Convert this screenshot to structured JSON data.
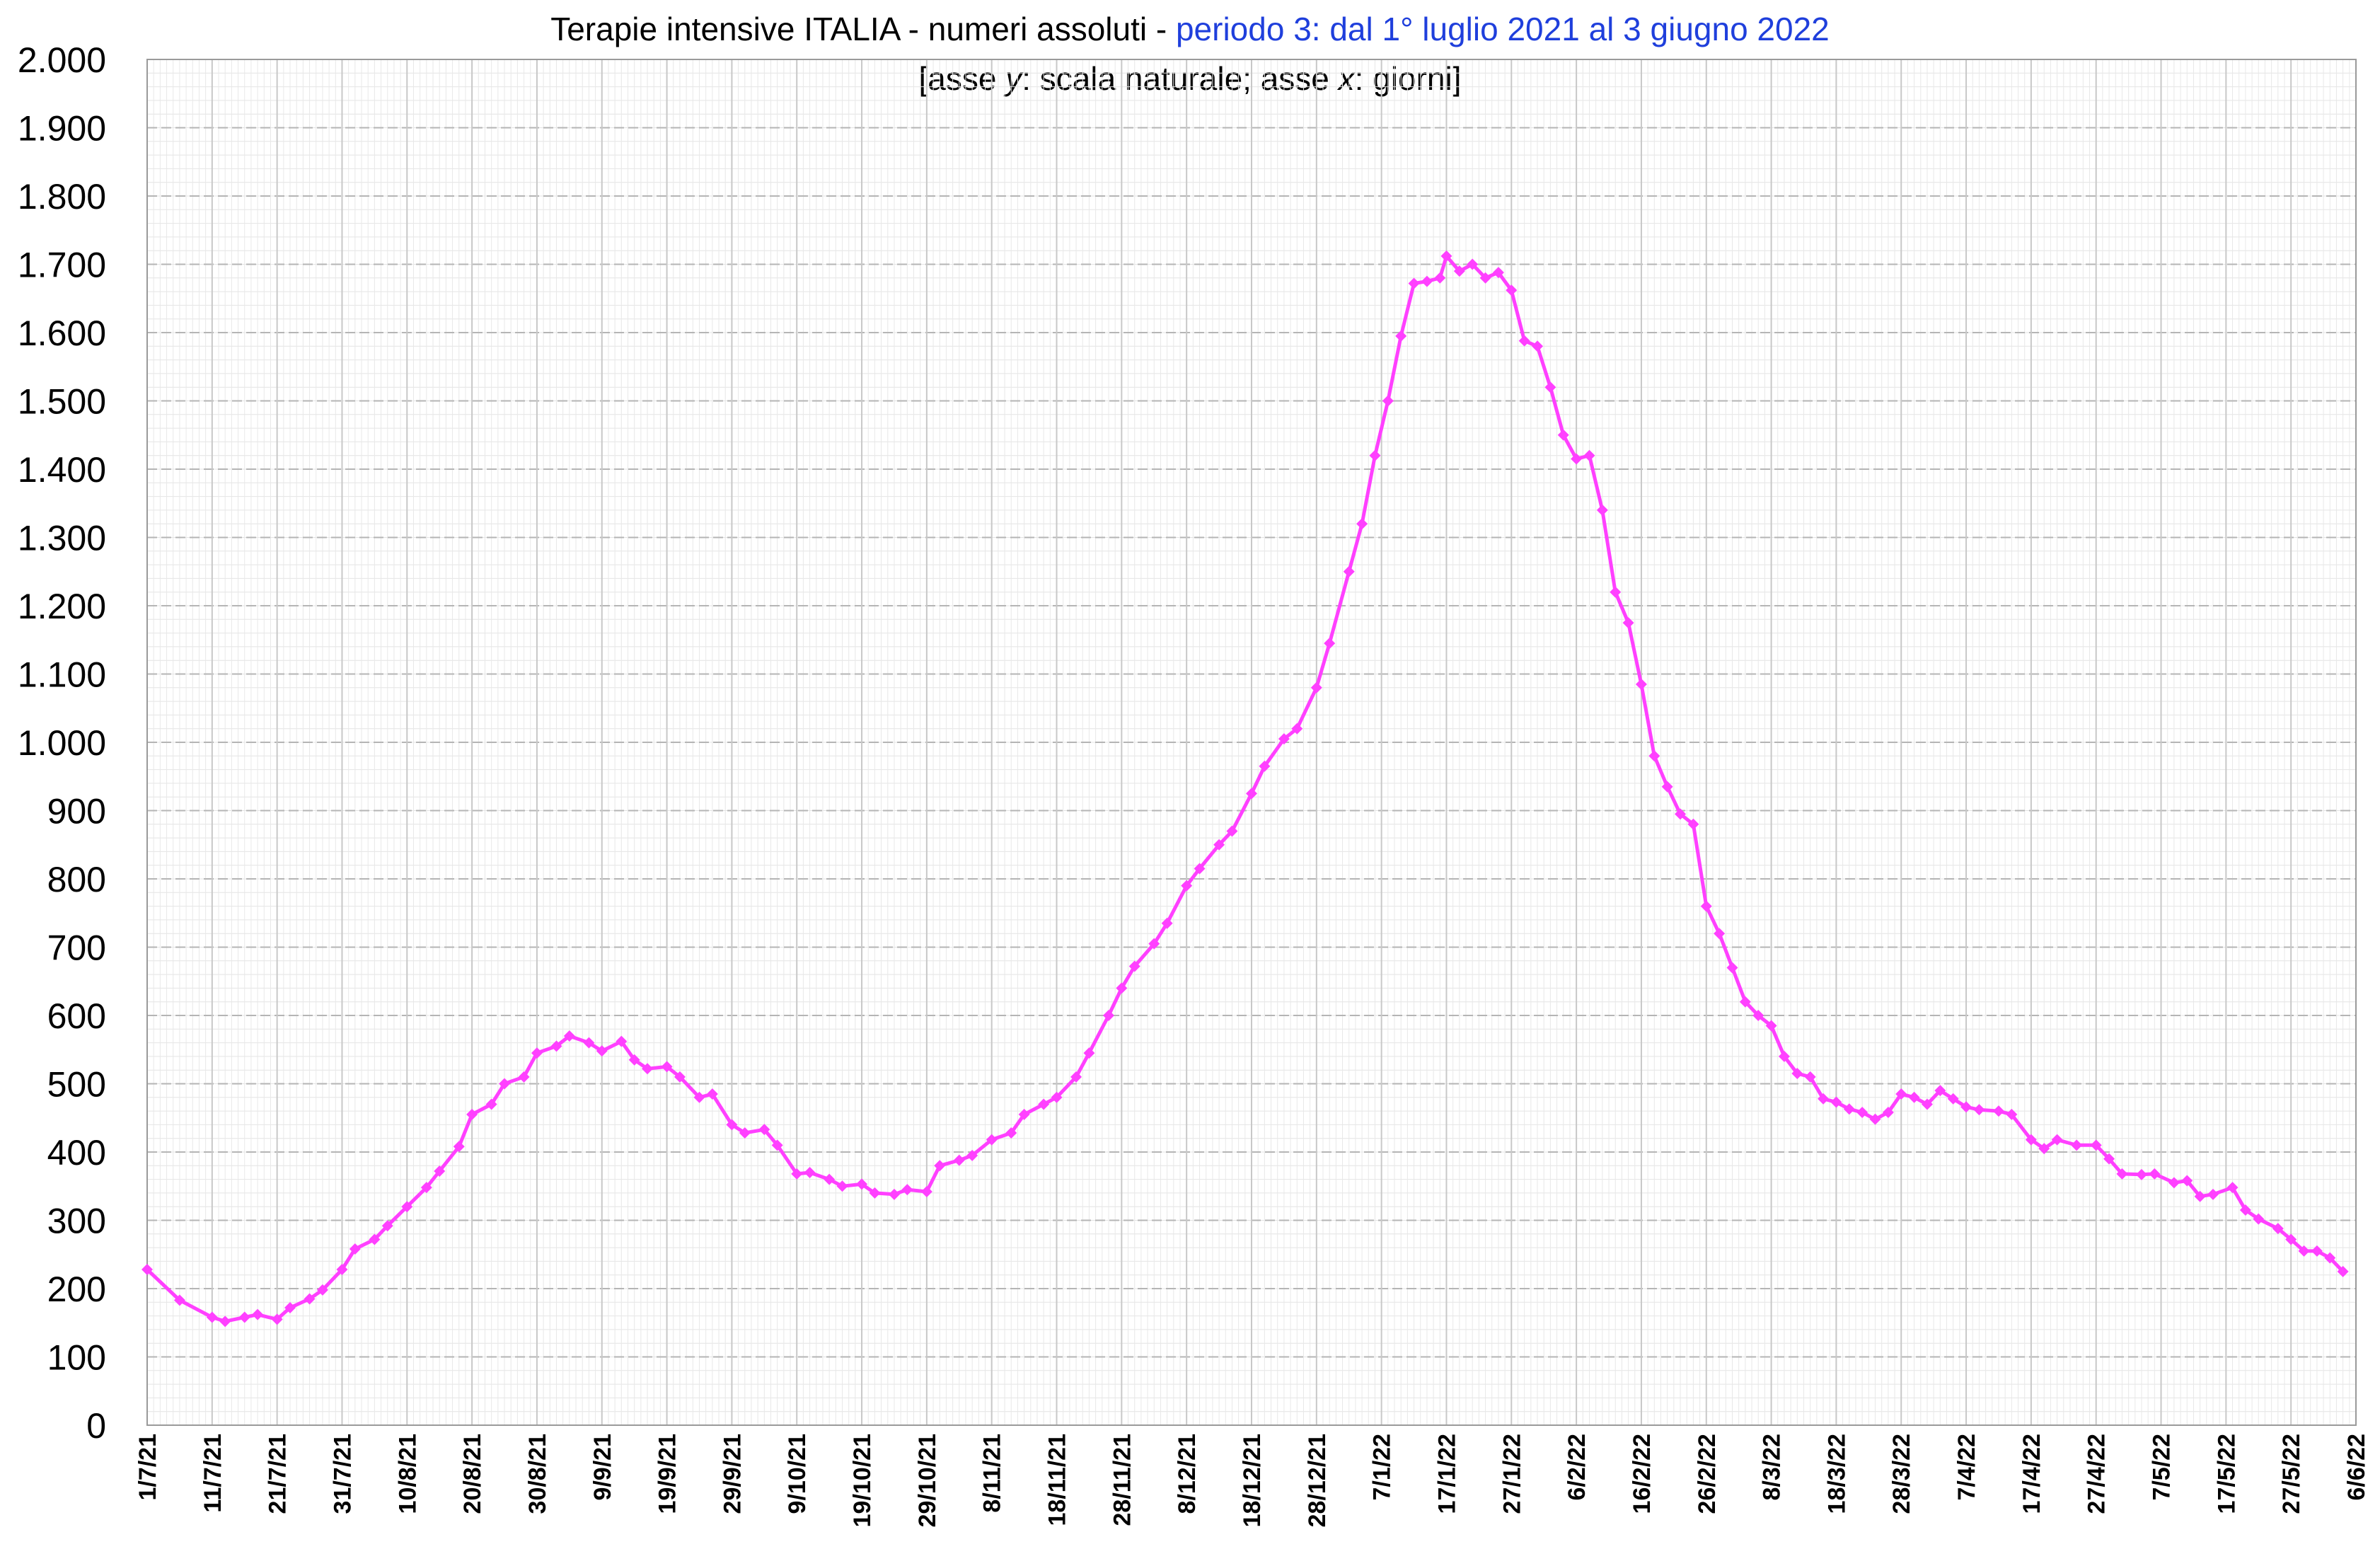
{
  "chart_data": {
    "type": "line",
    "title": "Terapie intensive ITALIA - numeri assoluti - ",
    "title_highlight": "periodo 3: dal 1° luglio 2021 al 3 giugno 2022",
    "subtitle_prefix": "[asse ",
    "subtitle_y": "y",
    "subtitle_mid": ": scala naturale;  asse ",
    "subtitle_x": "x",
    "subtitle_suffix": ": giorni]",
    "xlabel": "",
    "ylabel": "",
    "ylim": [
      0,
      2000
    ],
    "y_ticks": [
      0,
      100,
      200,
      300,
      400,
      500,
      600,
      700,
      800,
      900,
      1000,
      1100,
      1200,
      1300,
      1400,
      1500,
      1600,
      1700,
      1800,
      1900,
      2000
    ],
    "y_tick_labels": [
      "0",
      "100",
      "200",
      "300",
      "400",
      "500",
      "600",
      "700",
      "800",
      "900",
      "1.000",
      "1.100",
      "1.200",
      "1.300",
      "1.400",
      "1.500",
      "1.600",
      "1.700",
      "1.800",
      "1.900",
      "2.000"
    ],
    "x_start": "2021-07-01",
    "x_end": "2022-06-06",
    "x_tick_dates": [
      "2021-07-01",
      "2021-07-11",
      "2021-07-21",
      "2021-07-31",
      "2021-08-10",
      "2021-08-20",
      "2021-08-30",
      "2021-09-09",
      "2021-09-19",
      "2021-09-29",
      "2021-10-09",
      "2021-10-19",
      "2021-10-29",
      "2021-11-08",
      "2021-11-18",
      "2021-11-28",
      "2021-12-08",
      "2021-12-18",
      "2021-12-28",
      "2022-01-07",
      "2022-01-17",
      "2022-01-27",
      "2022-02-06",
      "2022-02-16",
      "2022-02-26",
      "2022-03-08",
      "2022-03-18",
      "2022-03-28",
      "2022-04-07",
      "2022-04-17",
      "2022-04-27",
      "2022-05-07",
      "2022-05-17",
      "2022-05-27",
      "2022-06-06"
    ],
    "x_tick_labels": [
      "1/7/21",
      "11/7/21",
      "21/7/21",
      "31/7/21",
      "10/8/21",
      "20/8/21",
      "30/8/21",
      "9/9/21",
      "19/9/21",
      "29/9/21",
      "9/10/21",
      "19/10/21",
      "29/10/21",
      "8/11/21",
      "18/11/21",
      "28/11/21",
      "8/12/21",
      "18/12/21",
      "28/12/21",
      "7/1/22",
      "17/1/22",
      "27/1/22",
      "6/2/22",
      "16/2/22",
      "26/2/22",
      "8/3/22",
      "18/3/22",
      "28/3/22",
      "7/4/22",
      "17/4/22",
      "27/4/22",
      "7/5/22",
      "17/5/22",
      "27/5/22",
      "6/6/22"
    ],
    "grid": true,
    "legend": "none",
    "series": [
      {
        "color": "#ff40ff",
        "points": [
          [
            "2021-07-01",
            228
          ],
          [
            "2021-07-06",
            183
          ],
          [
            "2021-07-11",
            158
          ],
          [
            "2021-07-13",
            152
          ],
          [
            "2021-07-16",
            158
          ],
          [
            "2021-07-18",
            162
          ],
          [
            "2021-07-21",
            155
          ],
          [
            "2021-07-23",
            172
          ],
          [
            "2021-07-26",
            185
          ],
          [
            "2021-07-28",
            198
          ],
          [
            "2021-07-31",
            228
          ],
          [
            "2021-08-02",
            258
          ],
          [
            "2021-08-05",
            272
          ],
          [
            "2021-08-07",
            292
          ],
          [
            "2021-08-10",
            320
          ],
          [
            "2021-08-13",
            348
          ],
          [
            "2021-08-15",
            372
          ],
          [
            "2021-08-18",
            408
          ],
          [
            "2021-08-20",
            455
          ],
          [
            "2021-08-23",
            470
          ],
          [
            "2021-08-25",
            500
          ],
          [
            "2021-08-28",
            510
          ],
          [
            "2021-08-30",
            545
          ],
          [
            "2021-09-02",
            555
          ],
          [
            "2021-09-04",
            570
          ],
          [
            "2021-09-07",
            560
          ],
          [
            "2021-09-09",
            548
          ],
          [
            "2021-09-12",
            562
          ],
          [
            "2021-09-14",
            535
          ],
          [
            "2021-09-16",
            522
          ],
          [
            "2021-09-19",
            525
          ],
          [
            "2021-09-21",
            510
          ],
          [
            "2021-09-24",
            480
          ],
          [
            "2021-09-26",
            485
          ],
          [
            "2021-09-29",
            440
          ],
          [
            "2021-10-01",
            428
          ],
          [
            "2021-10-04",
            433
          ],
          [
            "2021-10-06",
            410
          ],
          [
            "2021-10-09",
            368
          ],
          [
            "2021-10-11",
            370
          ],
          [
            "2021-10-14",
            360
          ],
          [
            "2021-10-16",
            350
          ],
          [
            "2021-10-19",
            353
          ],
          [
            "2021-10-21",
            340
          ],
          [
            "2021-10-24",
            338
          ],
          [
            "2021-10-26",
            345
          ],
          [
            "2021-10-29",
            342
          ],
          [
            "2021-10-31",
            380
          ],
          [
            "2021-11-03",
            388
          ],
          [
            "2021-11-05",
            395
          ],
          [
            "2021-11-08",
            418
          ],
          [
            "2021-11-11",
            428
          ],
          [
            "2021-11-13",
            455
          ],
          [
            "2021-11-16",
            470
          ],
          [
            "2021-11-18",
            480
          ],
          [
            "2021-11-21",
            510
          ],
          [
            "2021-11-23",
            545
          ],
          [
            "2021-11-26",
            600
          ],
          [
            "2021-11-28",
            640
          ],
          [
            "2021-11-30",
            672
          ],
          [
            "2021-12-03",
            705
          ],
          [
            "2021-12-05",
            735
          ],
          [
            "2021-12-08",
            790
          ],
          [
            "2021-12-10",
            815
          ],
          [
            "2021-12-13",
            850
          ],
          [
            "2021-12-15",
            870
          ],
          [
            "2021-12-18",
            925
          ],
          [
            "2021-12-20",
            965
          ],
          [
            "2021-12-23",
            1005
          ],
          [
            "2021-12-25",
            1020
          ],
          [
            "2021-12-28",
            1080
          ],
          [
            "2021-12-30",
            1145
          ],
          [
            "2022-01-02",
            1250
          ],
          [
            "2022-01-04",
            1320
          ],
          [
            "2022-01-06",
            1420
          ],
          [
            "2022-01-08",
            1500
          ],
          [
            "2022-01-10",
            1595
          ],
          [
            "2022-01-12",
            1672
          ],
          [
            "2022-01-14",
            1675
          ],
          [
            "2022-01-16",
            1680
          ],
          [
            "2022-01-17",
            1712
          ],
          [
            "2022-01-19",
            1690
          ],
          [
            "2022-01-21",
            1700
          ],
          [
            "2022-01-23",
            1680
          ],
          [
            "2022-01-25",
            1688
          ],
          [
            "2022-01-27",
            1662
          ],
          [
            "2022-01-29",
            1588
          ],
          [
            "2022-01-31",
            1580
          ],
          [
            "2022-02-02",
            1520
          ],
          [
            "2022-02-04",
            1450
          ],
          [
            "2022-02-06",
            1415
          ],
          [
            "2022-02-08",
            1420
          ],
          [
            "2022-02-10",
            1340
          ],
          [
            "2022-02-12",
            1220
          ],
          [
            "2022-02-14",
            1175
          ],
          [
            "2022-02-16",
            1085
          ],
          [
            "2022-02-18",
            980
          ],
          [
            "2022-02-20",
            935
          ],
          [
            "2022-02-22",
            895
          ],
          [
            "2022-02-24",
            880
          ],
          [
            "2022-02-26",
            760
          ],
          [
            "2022-02-28",
            720
          ],
          [
            "2022-03-02",
            670
          ],
          [
            "2022-03-04",
            620
          ],
          [
            "2022-03-06",
            600
          ],
          [
            "2022-03-08",
            585
          ],
          [
            "2022-03-10",
            540
          ],
          [
            "2022-03-12",
            515
          ],
          [
            "2022-03-14",
            510
          ],
          [
            "2022-03-16",
            478
          ],
          [
            "2022-03-18",
            473
          ],
          [
            "2022-03-20",
            463
          ],
          [
            "2022-03-22",
            458
          ],
          [
            "2022-03-24",
            448
          ],
          [
            "2022-03-26",
            458
          ],
          [
            "2022-03-28",
            485
          ],
          [
            "2022-03-30",
            480
          ],
          [
            "2022-04-01",
            470
          ],
          [
            "2022-04-03",
            490
          ],
          [
            "2022-04-05",
            478
          ],
          [
            "2022-04-07",
            466
          ],
          [
            "2022-04-09",
            462
          ],
          [
            "2022-04-12",
            460
          ],
          [
            "2022-04-14",
            455
          ],
          [
            "2022-04-17",
            418
          ],
          [
            "2022-04-19",
            405
          ],
          [
            "2022-04-21",
            418
          ],
          [
            "2022-04-24",
            410
          ],
          [
            "2022-04-27",
            410
          ],
          [
            "2022-04-29",
            390
          ],
          [
            "2022-05-01",
            368
          ],
          [
            "2022-05-04",
            367
          ],
          [
            "2022-05-06",
            368
          ],
          [
            "2022-05-09",
            355
          ],
          [
            "2022-05-11",
            358
          ],
          [
            "2022-05-13",
            335
          ],
          [
            "2022-05-15",
            338
          ],
          [
            "2022-05-18",
            348
          ],
          [
            "2022-05-20",
            315
          ],
          [
            "2022-05-22",
            302
          ],
          [
            "2022-05-25",
            288
          ],
          [
            "2022-05-27",
            272
          ],
          [
            "2022-05-29",
            255
          ],
          [
            "2022-05-31",
            255
          ],
          [
            "2022-06-02",
            245
          ],
          [
            "2022-06-04",
            225
          ]
        ]
      }
    ]
  }
}
